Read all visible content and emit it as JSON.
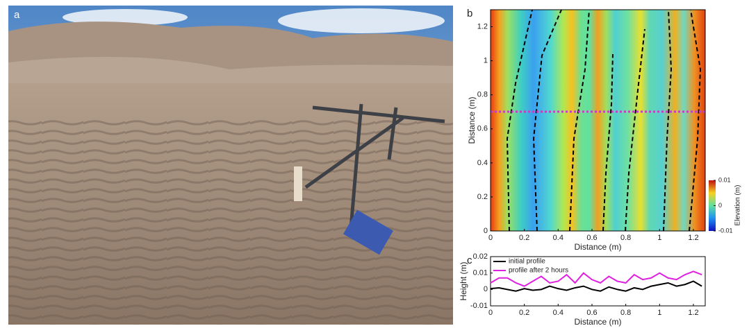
{
  "photo": {
    "panel_label": "a"
  },
  "chart_data": [
    {
      "type": "heatmap",
      "panel_label": "b",
      "xlabel": "Distance (m)",
      "ylabel": "Distance (m)",
      "xlim": [
        0,
        1.27
      ],
      "ylim": [
        0,
        1.3
      ],
      "xticks": [
        0,
        0.2,
        0.4,
        0.6,
        0.8,
        1,
        1.2
      ],
      "yticks": [
        0,
        0.2,
        0.4,
        0.6,
        0.8,
        1,
        1.2
      ],
      "colorbar": {
        "label": "Elevation (m)",
        "lim": [
          -0.01,
          0.01
        ],
        "ticks": [
          -0.01,
          0,
          0.01
        ]
      }
    },
    {
      "type": "line",
      "panel_label": "c",
      "xlabel": "Distance (m)",
      "ylabel": "Height (m)",
      "xlim": [
        0,
        1.27
      ],
      "ylim": [
        -0.01,
        0.02
      ],
      "xticks": [
        0,
        0.2,
        0.4,
        0.6,
        0.8,
        1,
        1.2
      ],
      "yticks": [
        -0.01,
        0,
        0.01,
        0.02
      ],
      "legend": "upper-left",
      "x": [
        0,
        0.05,
        0.1,
        0.15,
        0.2,
        0.25,
        0.3,
        0.35,
        0.4,
        0.45,
        0.5,
        0.55,
        0.6,
        0.65,
        0.7,
        0.75,
        0.8,
        0.85,
        0.9,
        0.95,
        1,
        1.05,
        1.1,
        1.15,
        1.2,
        1.25
      ],
      "series": [
        {
          "name": "initial profile",
          "color": "#000000",
          "values": [
            0.0005,
            0.001,
            0.0,
            -0.001,
            0.0005,
            -0.0005,
            0.0,
            0.002,
            0.0005,
            -0.0005,
            0.001,
            0.002,
            0.0,
            -0.001,
            0.0015,
            0.0,
            -0.001,
            0.001,
            0.0,
            0.002,
            0.003,
            0.004,
            0.002,
            0.003,
            0.005,
            0.002
          ]
        },
        {
          "name": "profile after 2 hours",
          "color": "#e020e0",
          "values": [
            0.004,
            0.007,
            0.007,
            0.004,
            0.002,
            0.005,
            0.008,
            0.004,
            0.005,
            0.009,
            0.004,
            0.01,
            0.006,
            0.004,
            0.008,
            0.005,
            0.004,
            0.009,
            0.006,
            0.007,
            0.01,
            0.007,
            0.006,
            0.009,
            0.011,
            0.009
          ]
        }
      ]
    }
  ]
}
